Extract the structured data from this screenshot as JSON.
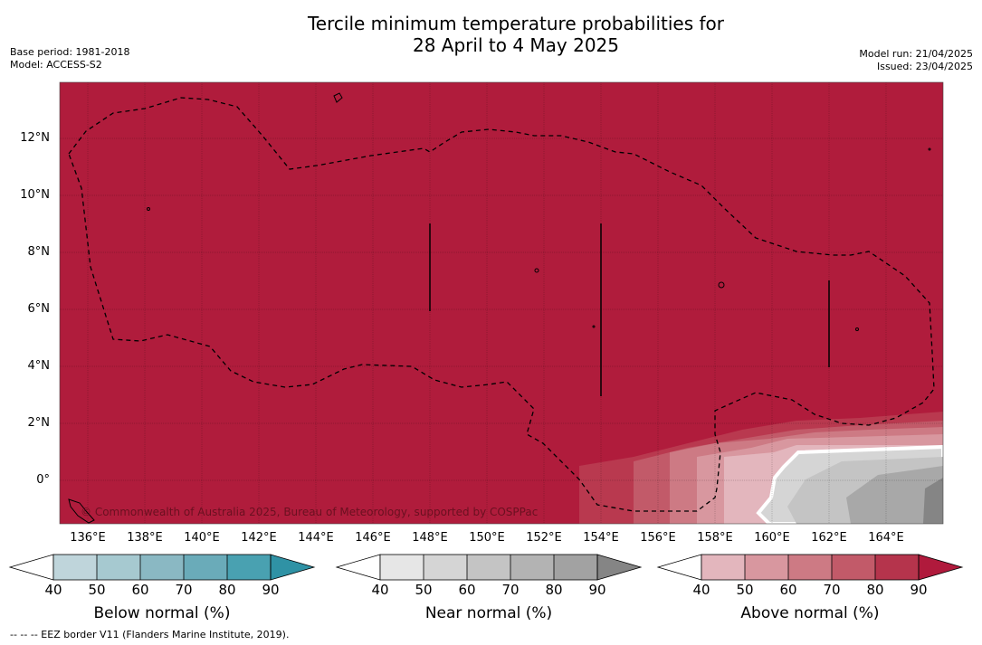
{
  "title_line1": "Tercile minimum temperature probabilities for",
  "title_line2": "28 April to 4 May 2025",
  "meta_left": [
    "Base period: 1981-2018",
    "Model: ACCESS-S2"
  ],
  "meta_right": [
    "Model run: 21/04/2025",
    "Issued: 23/04/2025"
  ],
  "lat_labels": [
    "12°N",
    "10°N",
    "8°N",
    "6°N",
    "4°N",
    "2°N",
    "0°"
  ],
  "lon_labels": [
    "136°E",
    "138°E",
    "140°E",
    "142°E",
    "144°E",
    "146°E",
    "148°E",
    "150°E",
    "152°E",
    "154°E",
    "156°E",
    "158°E",
    "160°E",
    "162°E",
    "164°E"
  ],
  "copyright": "© Commonwealth of Australia 2025, Bureau of Meteorology, supported by COSPPac",
  "colorbars": [
    {
      "title": "Below normal (%)",
      "ticks": [
        "40",
        "50",
        "60",
        "70",
        "80",
        "90"
      ],
      "colors": [
        "#bfd5db",
        "#a6c9d0",
        "#8ab8c3",
        "#6aabb9",
        "#49a1b1",
        "#2f92a5"
      ]
    },
    {
      "title": "Near normal (%)",
      "ticks": [
        "40",
        "50",
        "60",
        "70",
        "80",
        "90"
      ],
      "colors": [
        "#e6e6e6",
        "#d5d5d5",
        "#c4c4c4",
        "#b3b3b3",
        "#a2a2a2",
        "#858585"
      ]
    },
    {
      "title": "Above normal (%)",
      "ticks": [
        "40",
        "50",
        "60",
        "70",
        "80",
        "90"
      ],
      "colors": [
        "#e3b6bd",
        "#d8979f",
        "#cd7a84",
        "#c25a69",
        "#b5344c",
        "#b01a3c"
      ]
    }
  ],
  "map": {
    "dominant_category": "Above normal",
    "dominant_level": "90",
    "grid": true,
    "eez_border": "dashed"
  },
  "footer": "--  --  -- EEZ border V11 (Flanders Marine Institute, 2019)."
}
